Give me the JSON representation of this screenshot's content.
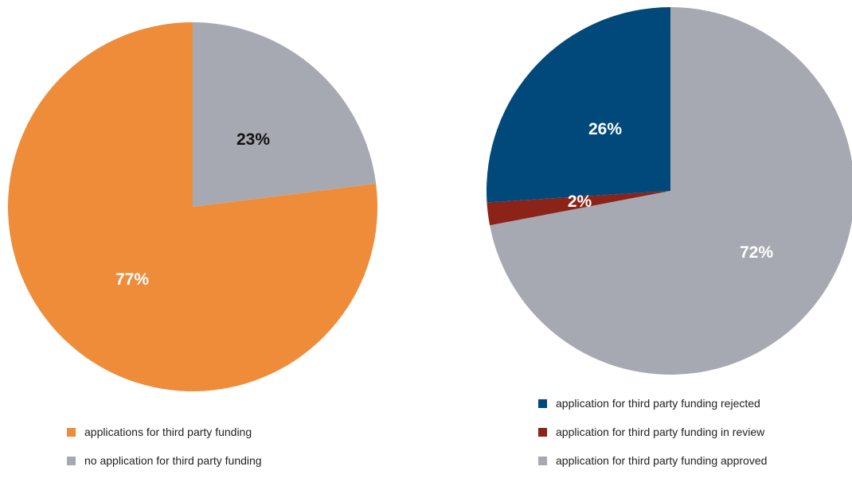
{
  "chart_data": [
    {
      "type": "pie",
      "title": "",
      "slices": [
        {
          "label": "no application for third party funding",
          "value": 23,
          "display": "23%",
          "color": "#A7A9B2",
          "label_color": "#111111"
        },
        {
          "label": "applications for third party funding",
          "value": 77,
          "display": "77%",
          "color": "#EF8C3A",
          "label_color": "#ffffff"
        }
      ],
      "legend": {
        "placement": "bottom",
        "items": [
          {
            "label": "applications for third party funding",
            "color": "#EF8C3A"
          },
          {
            "label": "no application for third party funding",
            "color": "#A7A9B2"
          }
        ]
      }
    },
    {
      "type": "pie",
      "title": "",
      "slices": [
        {
          "label": "application for third party funding approved",
          "value": 72,
          "display": "72%",
          "color": "#A7A9B2",
          "label_color": "#ffffff"
        },
        {
          "label": "application for third party funding in review",
          "value": 2,
          "display": "2%",
          "color": "#8B2318",
          "label_color": "#ffffff"
        },
        {
          "label": "application for third party funding rejected",
          "value": 26,
          "display": "26%",
          "color": "#01497A",
          "label_color": "#ffffff"
        }
      ],
      "legend": {
        "placement": "bottom",
        "items": [
          {
            "label": "application for third party funding rejected",
            "color": "#01497A"
          },
          {
            "label": "application for third party funding in review",
            "color": "#8B2318"
          },
          {
            "label": "application for third party funding approved",
            "color": "#A7A9B2"
          }
        ]
      }
    }
  ]
}
